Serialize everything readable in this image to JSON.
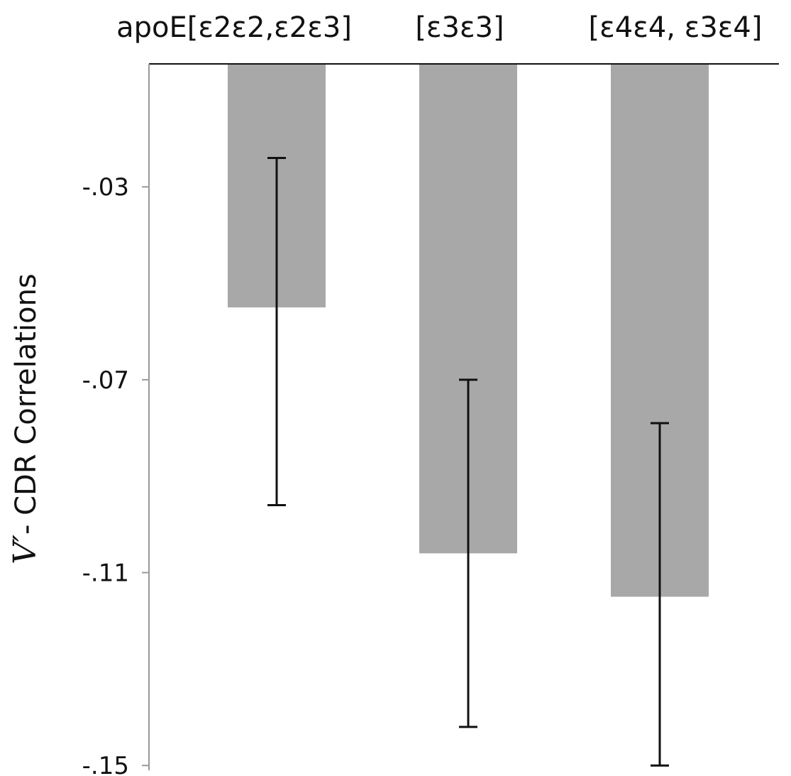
{
  "chart_data": {
    "type": "bar",
    "categories": [
      "apoE[ε2ε2,ε2ε3]",
      "[ε3ε3]",
      "[ε4ε4, ε3ε4]"
    ],
    "values": [
      -0.055,
      -0.106,
      -0.115
    ],
    "error_bars": [
      {
        "low": -0.096,
        "high": -0.024
      },
      {
        "low": -0.142,
        "high": -0.07
      },
      {
        "low": -0.15,
        "high": -0.079
      }
    ],
    "yticks": [
      -0.03,
      -0.07,
      -0.11,
      -0.15
    ],
    "ytick_labels": [
      "-.03",
      "-.07",
      "-.11",
      "-.15"
    ],
    "ylim": [
      -0.151,
      -0.0045
    ],
    "ylabel_symbol": "V′",
    "ylabel": "- CDR Correlations",
    "xlabel": "",
    "title": "",
    "grid": false,
    "bar_color": "#a8a8a8",
    "errorbar_color": "#111111"
  }
}
